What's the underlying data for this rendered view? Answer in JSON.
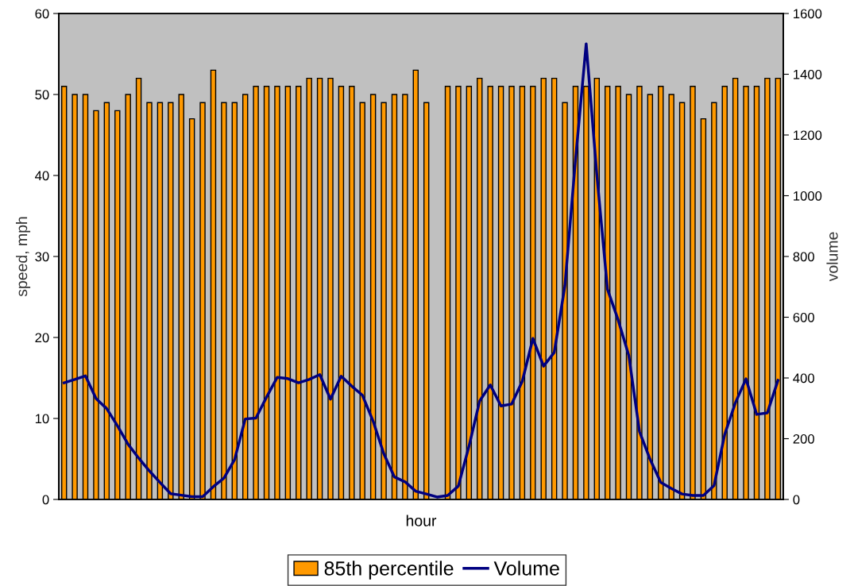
{
  "chart_data": {
    "type": "bar",
    "xlabel": "hour",
    "ylabel": "speed, mph",
    "y2label": "volume",
    "categories": [
      null,
      null,
      null,
      null,
      null,
      null,
      null,
      null,
      null,
      null,
      null,
      null,
      null,
      null,
      null,
      null,
      null,
      null,
      null,
      null,
      null,
      null,
      null,
      null,
      null,
      null,
      null,
      null,
      null,
      null,
      null,
      null,
      null,
      null,
      null,
      null,
      null,
      null,
      null,
      null,
      null,
      null,
      null,
      null,
      null,
      null,
      null,
      null,
      null,
      null,
      null,
      null,
      null,
      null,
      null,
      null,
      null,
      null,
      null,
      null,
      null,
      null,
      null,
      null,
      null,
      null,
      null,
      null
    ],
    "series": [
      {
        "name": "85th percentile",
        "color": "#ff9900",
        "values": [
          51,
          50,
          50,
          48,
          49,
          48,
          50,
          52,
          49,
          49,
          49,
          50,
          47,
          49,
          53,
          49,
          49,
          50,
          51,
          51,
          51,
          51,
          51,
          52,
          52,
          52,
          51,
          51,
          49,
          50,
          49,
          50,
          50,
          53,
          49,
          null,
          51,
          51,
          51,
          52,
          51,
          51,
          51,
          51,
          51,
          52,
          52,
          49,
          51,
          51,
          52,
          51,
          51,
          50,
          51,
          50,
          51,
          50,
          49,
          51,
          47,
          49,
          51,
          52,
          51,
          51,
          52,
          52
        ]
      },
      {
        "name": "Volume",
        "type": "line",
        "axis": "y2",
        "color": "#000080",
        "values": [
          384,
          395,
          407,
          332,
          299,
          243,
          182,
          136,
          94,
          56,
          19,
          14,
          9,
          9,
          42,
          70,
          131,
          265,
          268,
          337,
          402,
          398,
          384,
          395,
          411,
          330,
          406,
          373,
          343,
          258,
          151,
          74,
          58,
          27,
          18,
          8,
          13,
          44,
          175,
          324,
          377,
          308,
          314,
          389,
          530,
          439,
          484,
          703,
          1120,
          1500,
          1069,
          692,
          591,
          474,
          224,
          132,
          56,
          36,
          18,
          13,
          13,
          46,
          214,
          318,
          397,
          280,
          285,
          392
        ]
      }
    ],
    "ylim": [
      0,
      60
    ],
    "yticks": [
      0,
      10,
      20,
      30,
      40,
      50,
      60
    ],
    "y2lim": [
      0,
      1600
    ],
    "y2ticks": [
      0,
      200,
      400,
      600,
      800,
      1000,
      1200,
      1400,
      1600
    ],
    "tick_labels": "y",
    "grid": false,
    "legend": "bottom",
    "marker": "none",
    "line_style": "solid"
  }
}
